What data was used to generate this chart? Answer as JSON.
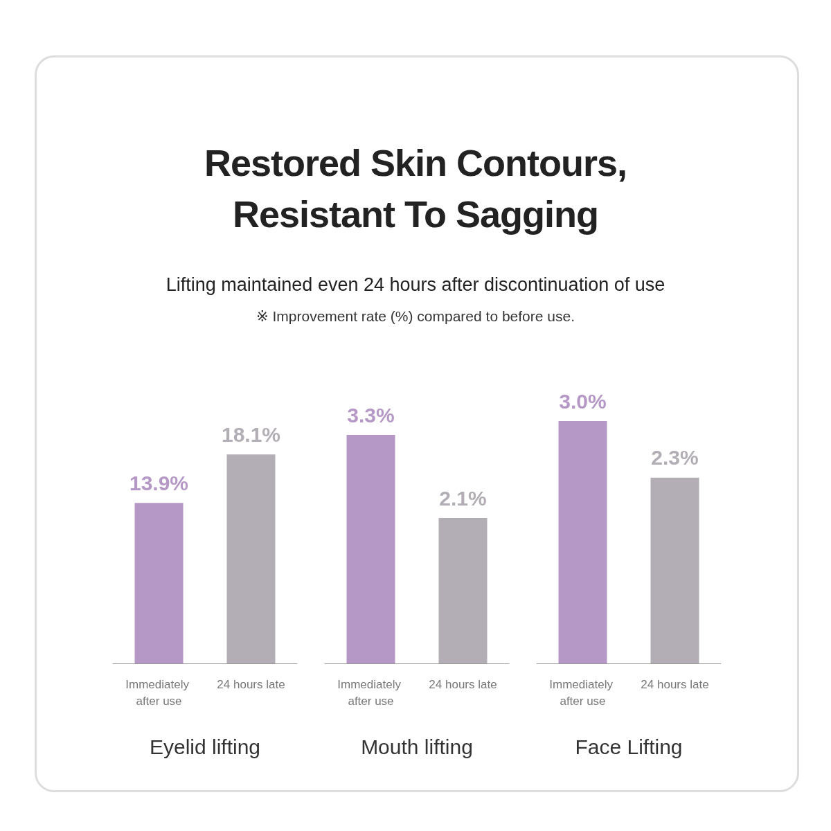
{
  "chart_data": [
    {
      "type": "bar",
      "title": "Restored Skin Contours,\nResistant To Sagging",
      "subtitle": "Lifting maintained even 24 hours after discontinuation of use",
      "annotations": [
        "※ Improvement rate (%) compared to before use."
      ],
      "xlabel": "Eyelid lifting",
      "categories": [
        "Immediately after use",
        "24 hours late"
      ],
      "values": [
        13.9,
        18.1
      ],
      "colors": [
        "#b598c6",
        "#b3adb5"
      ],
      "value_labels": [
        "13.9%",
        "18.1%"
      ]
    },
    {
      "type": "bar",
      "xlabel": "Mouth lifting",
      "categories": [
        "Immediately after use",
        "24 hours late"
      ],
      "values": [
        3.3,
        2.1
      ],
      "colors": [
        "#b598c6",
        "#b3adb5"
      ],
      "value_labels": [
        "3.3%",
        "2.1%"
      ]
    },
    {
      "type": "bar",
      "xlabel": "Face Lifting",
      "categories": [
        "Immediately after use",
        "24 hours late"
      ],
      "values": [
        3.0,
        2.3
      ],
      "colors": [
        "#b598c6",
        "#b3adb5"
      ],
      "value_labels": [
        "3.0%",
        "2.3%"
      ]
    }
  ]
}
